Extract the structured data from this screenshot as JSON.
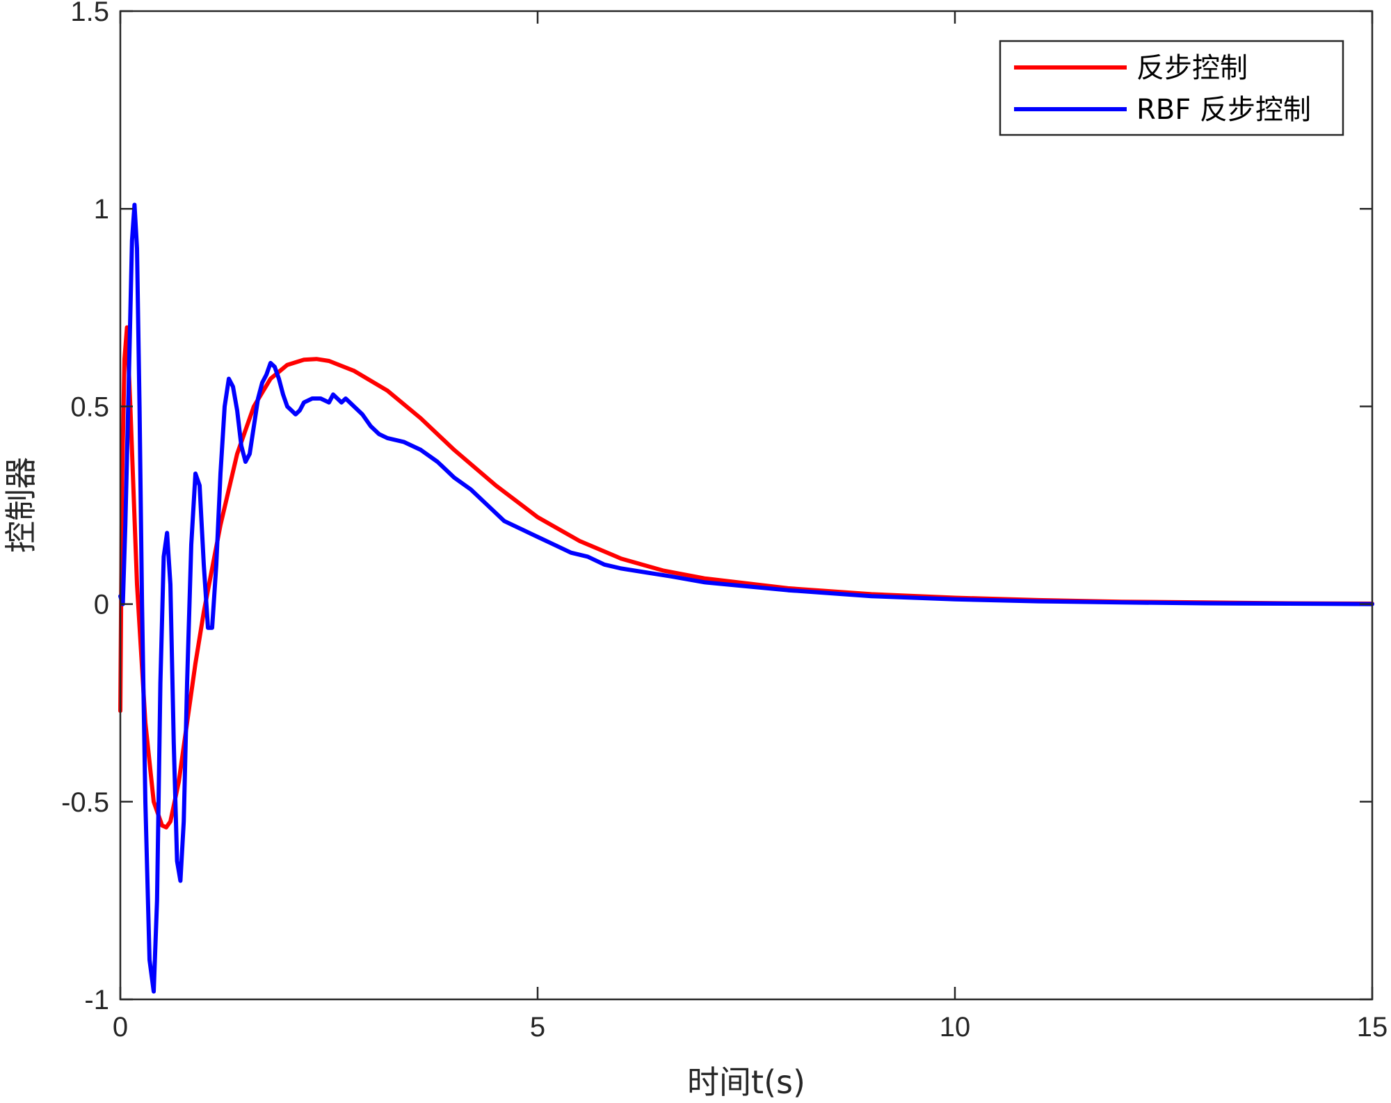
{
  "chart_data": {
    "type": "line",
    "title": "",
    "xlabel": "时间t(s)",
    "ylabel": "控制器",
    "xlim": [
      0,
      15
    ],
    "ylim": [
      -1,
      1.5
    ],
    "xticks": [
      0,
      5,
      10,
      15
    ],
    "xtick_labels": [
      "0",
      "5",
      "10",
      "15"
    ],
    "yticks": [
      -1,
      -0.5,
      0,
      0.5,
      1,
      1.5
    ],
    "ytick_labels": [
      "-1",
      "-0.5",
      "0",
      "0.5",
      "1",
      "1.5"
    ],
    "grid": false,
    "legend_position": "top-right",
    "series": [
      {
        "name": "反步控制",
        "color": "#ff0000",
        "x": [
          0,
          0.02,
          0.05,
          0.08,
          0.12,
          0.2,
          0.3,
          0.4,
          0.5,
          0.55,
          0.6,
          0.7,
          0.8,
          0.9,
          1.0,
          1.2,
          1.4,
          1.6,
          1.8,
          2.0,
          2.2,
          2.35,
          2.5,
          2.8,
          3.2,
          3.6,
          4.0,
          4.5,
          5.0,
          5.5,
          6.0,
          6.5,
          7.0,
          8.0,
          9.0,
          10.0,
          11.0,
          12.0,
          13.0,
          14.0,
          15.0
        ],
        "y": [
          -0.27,
          0.3,
          0.62,
          0.7,
          0.5,
          0.05,
          -0.3,
          -0.5,
          -0.56,
          -0.565,
          -0.55,
          -0.45,
          -0.3,
          -0.15,
          -0.02,
          0.2,
          0.38,
          0.5,
          0.57,
          0.605,
          0.618,
          0.62,
          0.615,
          0.59,
          0.54,
          0.47,
          0.39,
          0.3,
          0.22,
          0.16,
          0.115,
          0.085,
          0.065,
          0.04,
          0.025,
          0.016,
          0.01,
          0.006,
          0.004,
          0.002,
          0.001
        ]
      },
      {
        "name": "RBF 反步控制",
        "color": "#0000ff",
        "x": [
          0,
          0.03,
          0.06,
          0.1,
          0.14,
          0.17,
          0.2,
          0.23,
          0.26,
          0.3,
          0.35,
          0.4,
          0.44,
          0.48,
          0.52,
          0.56,
          0.6,
          0.64,
          0.68,
          0.72,
          0.76,
          0.8,
          0.85,
          0.9,
          0.95,
          1.0,
          1.05,
          1.1,
          1.15,
          1.2,
          1.25,
          1.3,
          1.35,
          1.4,
          1.45,
          1.5,
          1.55,
          1.6,
          1.65,
          1.7,
          1.75,
          1.8,
          1.85,
          1.9,
          1.95,
          2.0,
          2.05,
          2.1,
          2.15,
          2.2,
          2.3,
          2.4,
          2.5,
          2.55,
          2.6,
          2.65,
          2.7,
          2.75,
          2.8,
          2.9,
          3.0,
          3.1,
          3.2,
          3.4,
          3.6,
          3.8,
          4.0,
          4.2,
          4.4,
          4.6,
          4.8,
          5.0,
          5.2,
          5.4,
          5.6,
          5.8,
          6.0,
          6.3,
          6.6,
          7.0,
          7.5,
          8.0,
          9.0,
          10.0,
          11.0,
          12.0,
          13.0,
          14.0,
          15.0
        ],
        "y": [
          0.02,
          0.0,
          0.2,
          0.55,
          0.92,
          1.01,
          0.9,
          0.5,
          0.0,
          -0.5,
          -0.9,
          -0.98,
          -0.75,
          -0.2,
          0.12,
          0.18,
          0.05,
          -0.35,
          -0.65,
          -0.7,
          -0.55,
          -0.2,
          0.15,
          0.33,
          0.3,
          0.1,
          -0.06,
          -0.06,
          0.1,
          0.33,
          0.5,
          0.57,
          0.55,
          0.49,
          0.4,
          0.36,
          0.38,
          0.45,
          0.52,
          0.56,
          0.58,
          0.61,
          0.6,
          0.57,
          0.53,
          0.5,
          0.49,
          0.48,
          0.49,
          0.51,
          0.52,
          0.52,
          0.51,
          0.53,
          0.52,
          0.51,
          0.52,
          0.51,
          0.5,
          0.48,
          0.45,
          0.43,
          0.42,
          0.41,
          0.39,
          0.36,
          0.32,
          0.29,
          0.25,
          0.21,
          0.19,
          0.17,
          0.15,
          0.13,
          0.12,
          0.1,
          0.09,
          0.08,
          0.07,
          0.055,
          0.045,
          0.035,
          0.02,
          0.012,
          0.007,
          0.004,
          0.002,
          0.001,
          0.0
        ]
      }
    ]
  }
}
